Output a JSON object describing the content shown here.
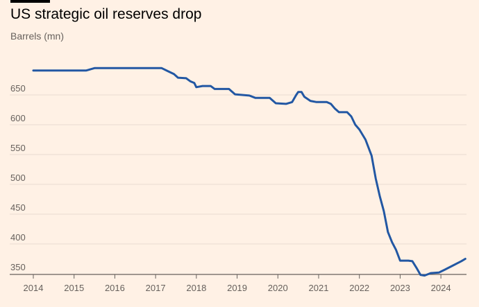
{
  "chart_data": {
    "type": "line",
    "title": "US strategic oil reserves drop",
    "subtitle": "Barrels (mn)",
    "xlabel": "",
    "ylabel": "",
    "x_ticks": [
      "2014",
      "2015",
      "2016",
      "2017",
      "2018",
      "2019",
      "2020",
      "2021",
      "2022",
      "2023",
      "2024"
    ],
    "y_ticks": [
      350,
      400,
      450,
      500,
      550,
      600,
      650
    ],
    "xlim": [
      2014.0,
      2024.7
    ],
    "ylim": [
      340,
      700
    ],
    "grid": true,
    "colors": {
      "background": "#fff1e5",
      "line": "#2257a3",
      "grid": "#e8dcd1",
      "axis": "#66605c"
    },
    "series": [
      {
        "points": [
          [
            2014.0,
            691
          ],
          [
            2014.5,
            691
          ],
          [
            2015.0,
            691
          ],
          [
            2015.3,
            691
          ],
          [
            2015.5,
            695
          ],
          [
            2015.8,
            695
          ],
          [
            2016.3,
            695
          ],
          [
            2016.8,
            695
          ],
          [
            2017.15,
            695
          ],
          [
            2017.3,
            690
          ],
          [
            2017.45,
            685
          ],
          [
            2017.55,
            679
          ],
          [
            2017.75,
            678
          ],
          [
            2017.85,
            673
          ],
          [
            2017.95,
            670
          ],
          [
            2018.0,
            663
          ],
          [
            2018.15,
            665
          ],
          [
            2018.35,
            665
          ],
          [
            2018.45,
            660
          ],
          [
            2018.8,
            660
          ],
          [
            2018.95,
            651
          ],
          [
            2019.3,
            649
          ],
          [
            2019.45,
            645
          ],
          [
            2019.8,
            645
          ],
          [
            2019.95,
            636
          ],
          [
            2020.2,
            635
          ],
          [
            2020.35,
            638
          ],
          [
            2020.45,
            650
          ],
          [
            2020.5,
            655
          ],
          [
            2020.58,
            655
          ],
          [
            2020.65,
            647
          ],
          [
            2020.8,
            640
          ],
          [
            2020.95,
            638
          ],
          [
            2021.2,
            638
          ],
          [
            2021.3,
            635
          ],
          [
            2021.4,
            627
          ],
          [
            2021.5,
            621
          ],
          [
            2021.7,
            621
          ],
          [
            2021.8,
            614
          ],
          [
            2021.9,
            600
          ],
          [
            2022.0,
            592
          ],
          [
            2022.15,
            575
          ],
          [
            2022.3,
            548
          ],
          [
            2022.4,
            510
          ],
          [
            2022.5,
            480
          ],
          [
            2022.6,
            455
          ],
          [
            2022.7,
            420
          ],
          [
            2022.8,
            403
          ],
          [
            2022.9,
            390
          ],
          [
            2023.0,
            372
          ],
          [
            2023.2,
            372
          ],
          [
            2023.3,
            371
          ],
          [
            2023.4,
            360
          ],
          [
            2023.5,
            348
          ],
          [
            2023.6,
            347
          ],
          [
            2023.75,
            351
          ],
          [
            2023.95,
            352
          ],
          [
            2024.1,
            357
          ],
          [
            2024.3,
            364
          ],
          [
            2024.5,
            371
          ],
          [
            2024.6,
            375
          ]
        ]
      }
    ]
  }
}
